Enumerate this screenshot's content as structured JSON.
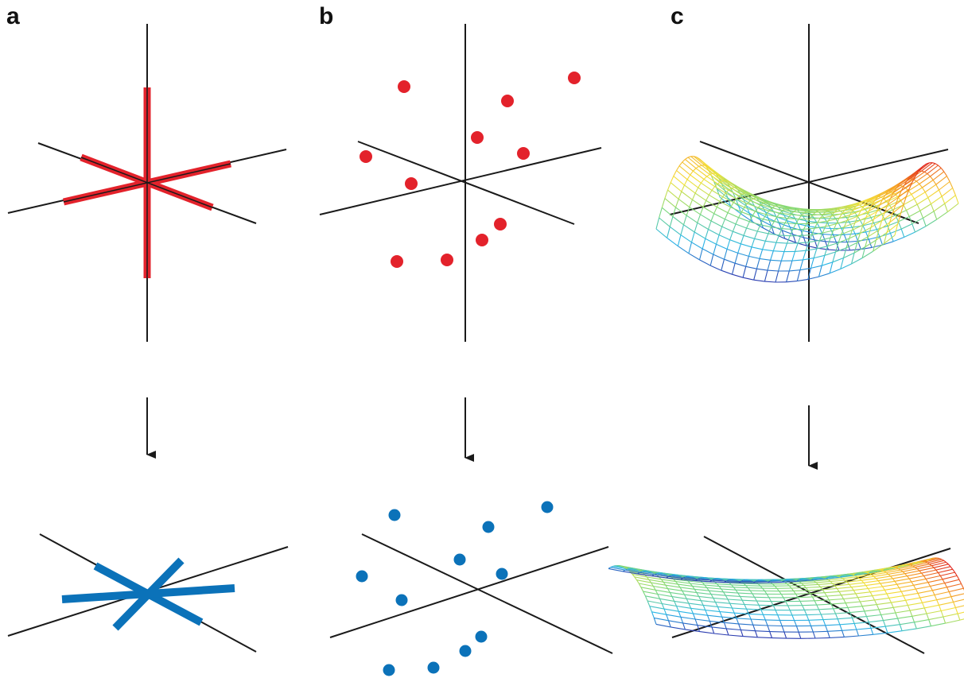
{
  "panels": [
    {
      "label": "a"
    },
    {
      "label": "b"
    },
    {
      "label": "c"
    }
  ],
  "colors": {
    "axis": "#1a1a1a",
    "upper_marks": "#e3222b",
    "lower_marks": "#0b72b9",
    "surface_gradient": [
      "#2b3cb0",
      "#29b6e8",
      "#7dd87a",
      "#f4e23a",
      "#f59a23",
      "#e0201d"
    ]
  }
}
